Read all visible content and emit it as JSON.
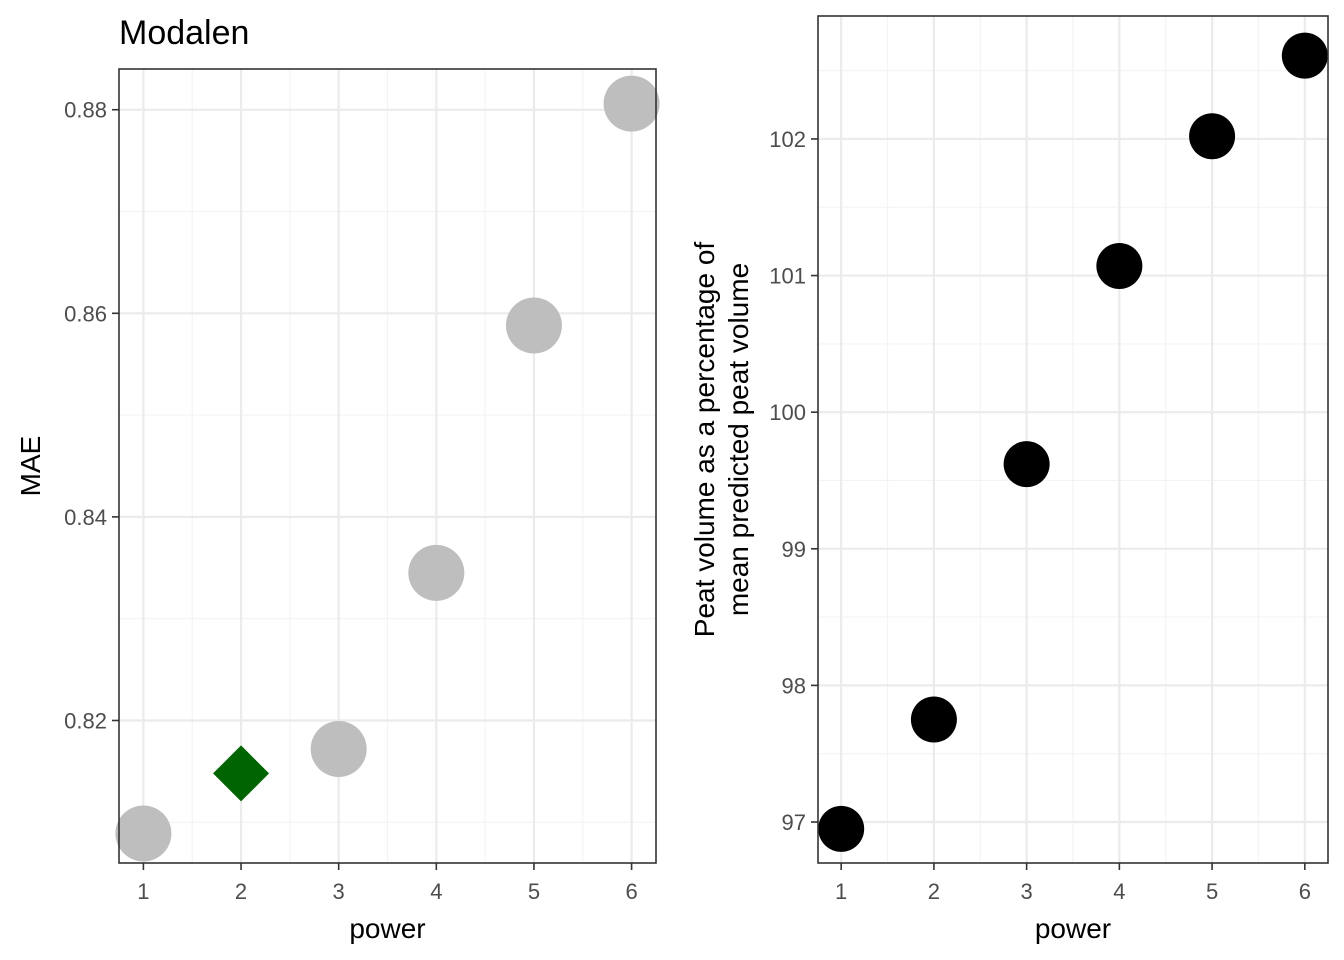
{
  "chart_data": [
    {
      "type": "scatter",
      "title": "Modalen",
      "xlabel": "power",
      "ylabel": "MAE",
      "x": [
        1,
        2,
        3,
        4,
        5,
        6
      ],
      "y": [
        0.8089,
        0.8148,
        0.8172,
        0.8345,
        0.8588,
        0.8806
      ],
      "highlight_index": 1,
      "point_color": "#bebebe",
      "highlight_color": "#006400",
      "highlight_shape": "diamond",
      "xlim": [
        0.75,
        6.25
      ],
      "ylim": [
        0.806,
        0.884
      ],
      "x_ticks": [
        1,
        2,
        3,
        4,
        5,
        6
      ],
      "y_ticks": [
        0.82,
        0.84,
        0.86,
        0.88
      ],
      "y_tick_labels": [
        "0.82",
        "0.84",
        "0.86",
        "0.88"
      ],
      "grid": true
    },
    {
      "type": "scatter",
      "title": "",
      "xlabel": "power",
      "ylabel_lines": [
        "Peat volume as a percentage of",
        "mean predicted peat volume"
      ],
      "x": [
        1,
        2,
        3,
        4,
        5,
        6
      ],
      "y": [
        96.95,
        97.75,
        99.62,
        101.07,
        102.02,
        102.61
      ],
      "point_color": "#000000",
      "xlim": [
        0.75,
        6.25
      ],
      "ylim": [
        96.7,
        102.9
      ],
      "x_ticks": [
        1,
        2,
        3,
        4,
        5,
        6
      ],
      "y_ticks": [
        97,
        98,
        99,
        100,
        101,
        102
      ],
      "y_tick_labels": [
        "97",
        "98",
        "99",
        "100",
        "101",
        "102"
      ],
      "grid": true
    }
  ]
}
